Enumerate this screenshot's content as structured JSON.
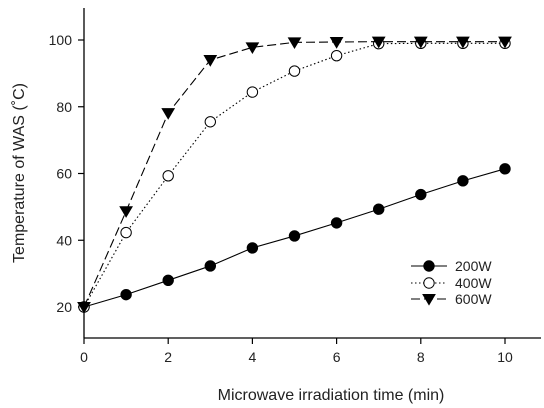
{
  "chart_data": {
    "type": "line",
    "xlabel": "Microwave irradiation time (min)",
    "ylabel": "Temperature of WAS (˚C)",
    "xlim": [
      0,
      10.9
    ],
    "ylim": [
      14,
      109
    ],
    "xticks": [
      0,
      2,
      4,
      6,
      8,
      10
    ],
    "yticks": [
      20,
      40,
      60,
      80,
      100
    ],
    "grid": false,
    "legend_position": "bottom-right",
    "series": [
      {
        "name": "200W",
        "marker": "filled-circle",
        "line_style": "solid",
        "x": [
          0,
          1,
          2,
          3,
          4,
          5,
          6,
          7,
          8,
          9,
          10
        ],
        "y": [
          20,
          23.7,
          28,
          32.3,
          37.7,
          41.3,
          45.2,
          49.3,
          53.7,
          57.8,
          61.4
        ]
      },
      {
        "name": "400W",
        "marker": "open-circle",
        "line_style": "dotted",
        "x": [
          0,
          1,
          2,
          3,
          4,
          5,
          6,
          7,
          8,
          9,
          10
        ],
        "y": [
          20,
          42.3,
          59.3,
          75.5,
          84.4,
          90.7,
          95.3,
          98.9,
          99,
          99,
          99
        ]
      },
      {
        "name": "600W",
        "marker": "filled-triangle-down",
        "line_style": "dashed",
        "x": [
          0,
          1,
          2,
          3,
          4,
          5,
          6,
          7,
          8,
          9,
          10
        ],
        "y": [
          20,
          48.7,
          78.1,
          94,
          97.8,
          99.3,
          99.4,
          99.5,
          99.5,
          99.5,
          99.5
        ]
      }
    ]
  }
}
